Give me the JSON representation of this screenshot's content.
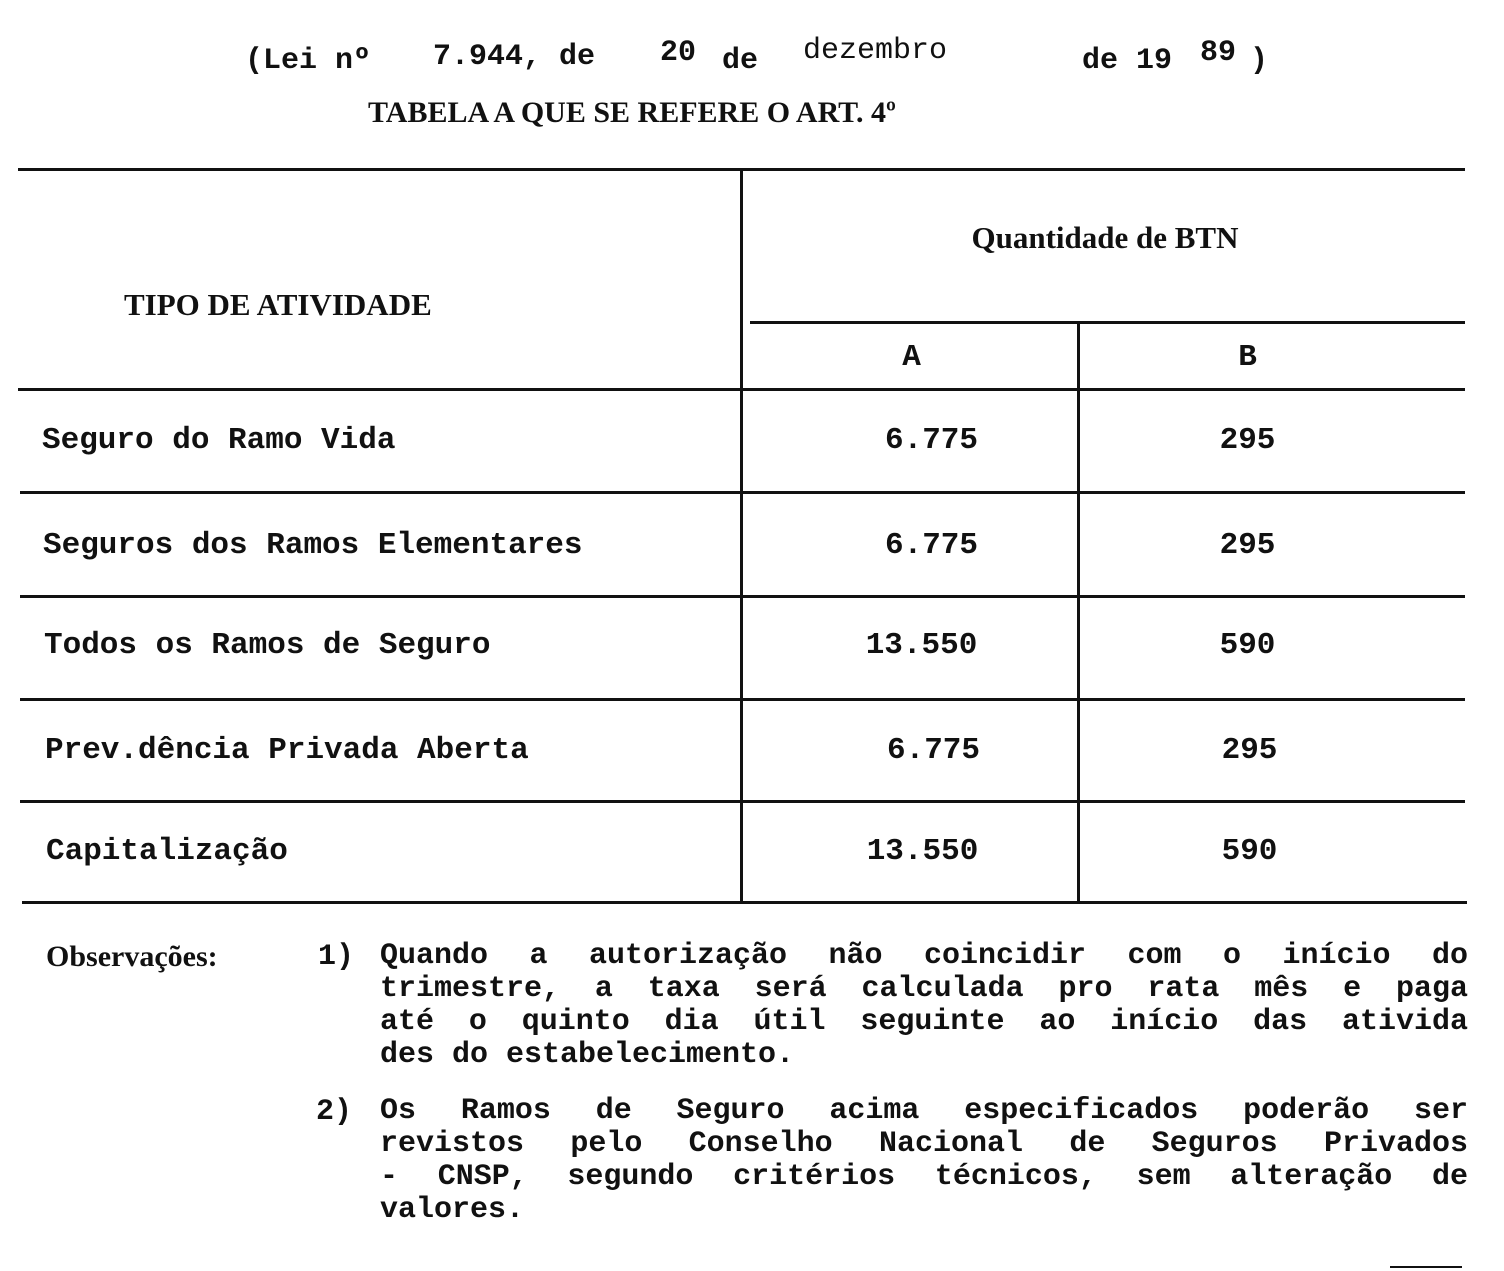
{
  "header": {
    "law_open": "(Lei nº",
    "law_number": "7.944, de",
    "day": "20",
    "de1": "de",
    "month": "dezembro",
    "de2": "de 19",
    "year_suffix": "89",
    "close": ")",
    "subtitle": "TABELA A QUE SE REFERE O ART. 4º"
  },
  "table": {
    "col_activity": "TIPO DE ATIVIDADE",
    "col_group": "Quantidade de BTN",
    "col_a": "A",
    "col_b": "B",
    "rows": [
      {
        "activity": "Seguro do Ramo Vida",
        "a": "6.775",
        "b": "295"
      },
      {
        "activity": "Seguros dos Ramos Elementares",
        "a": "6.775",
        "b": "295"
      },
      {
        "activity": "Todos os Ramos de Seguro",
        "a": "13.550",
        "b": "590"
      },
      {
        "activity": "Prev.dência Privada Aberta",
        "a": "6.775",
        "b": "295"
      },
      {
        "activity": "Capitalização",
        "a": "13.550",
        "b": "590"
      }
    ]
  },
  "observations": {
    "label": "Observações:",
    "notes": [
      {
        "number": "1)",
        "lines": [
          "Quando a autorização não coincidir com o início  do",
          "trimestre, a taxa será calculada pro rata mês e paga",
          "até o quinto dia útil seguinte ao início das ativida",
          "des do estabelecimento."
        ]
      },
      {
        "number": "2)",
        "lines": [
          "Os Ramos de Seguro acima especificados poderão  ser",
          "revistos pelo Conselho Nacional de Seguros  Privados",
          "- CNSP, segundo critérios técnicos, sem alteração de",
          "valores."
        ]
      }
    ]
  }
}
